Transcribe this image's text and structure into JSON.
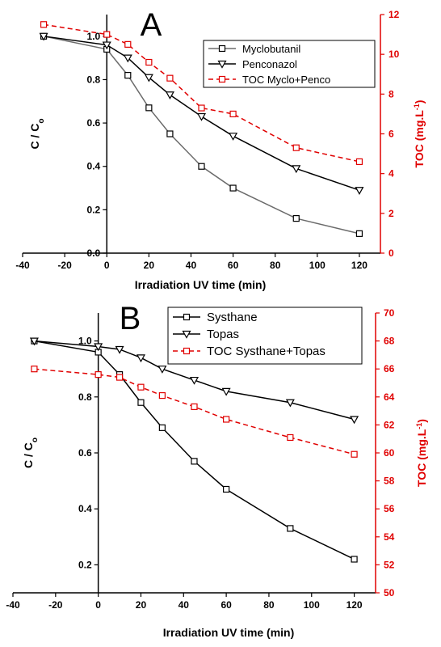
{
  "chart_data": [
    {
      "type": "line",
      "panel": "A",
      "xlabel": "Irradiation UV time (min)",
      "ylabel": "C / Co",
      "y2label": "TOC (mg.L-1)",
      "xlim": [
        -40,
        130
      ],
      "xticks": [
        -40,
        -20,
        0,
        20,
        40,
        60,
        80,
        100,
        120
      ],
      "ylim": [
        0.0,
        1.1
      ],
      "yticks": [
        0.0,
        0.2,
        0.4,
        0.6,
        0.8,
        1.0
      ],
      "ytick_labels": [
        "0.0",
        "0.2",
        "0.4",
        "0.6",
        "0.8",
        "1.0"
      ],
      "y2lim": [
        0,
        12
      ],
      "y2ticks": [
        0,
        2,
        4,
        6,
        8,
        10,
        12
      ],
      "legend_position": "top-right",
      "series": [
        {
          "name": "Myclobutanil",
          "axis": "left",
          "marker": "square",
          "color": "#000000",
          "line_color": "#6b6b6b",
          "dash": false,
          "x": [
            -30,
            0,
            10,
            20,
            30,
            45,
            60,
            90,
            120
          ],
          "y": [
            1.0,
            0.94,
            0.82,
            0.67,
            0.55,
            0.4,
            0.3,
            0.16,
            0.09
          ]
        },
        {
          "name": "Penconazol",
          "axis": "left",
          "marker": "triangle-down",
          "color": "#000000",
          "line_color": "#000000",
          "dash": false,
          "x": [
            -30,
            0,
            10,
            20,
            30,
            45,
            60,
            90,
            120
          ],
          "y": [
            1.0,
            0.96,
            0.9,
            0.81,
            0.73,
            0.63,
            0.54,
            0.39,
            0.29
          ]
        },
        {
          "name": "TOC Myclo+Penco",
          "axis": "right",
          "marker": "square",
          "color": "#e00000",
          "line_color": "#e00000",
          "dash": true,
          "x": [
            -30,
            0,
            10,
            20,
            30,
            45,
            60,
            90,
            120
          ],
          "y": [
            11.5,
            11.0,
            10.5,
            9.6,
            8.8,
            7.3,
            7.0,
            5.3,
            4.6
          ]
        }
      ]
    },
    {
      "type": "line",
      "panel": "B",
      "xlabel": "Irradiation UV time (min)",
      "ylabel": "C / Co",
      "y2label": "TOC (mg.L-1)",
      "xlim": [
        -40,
        130
      ],
      "xticks": [
        -40,
        -20,
        0,
        20,
        40,
        60,
        80,
        100,
        120
      ],
      "ylim": [
        0.1,
        1.1
      ],
      "yticks": [
        0.2,
        0.4,
        0.6,
        0.8,
        1.0
      ],
      "ytick_labels": [
        "0.2",
        "0.4",
        "0.6",
        "0.8",
        "1.0"
      ],
      "y2lim": [
        50,
        70
      ],
      "y2ticks": [
        50,
        52,
        54,
        56,
        58,
        60,
        62,
        64,
        66,
        68,
        70
      ],
      "legend_position": "top-right",
      "series": [
        {
          "name": "Systhane",
          "axis": "left",
          "marker": "square",
          "color": "#000000",
          "line_color": "#000000",
          "dash": false,
          "x": [
            -30,
            0,
            10,
            20,
            30,
            45,
            60,
            90,
            120
          ],
          "y": [
            1.0,
            0.96,
            0.88,
            0.78,
            0.69,
            0.57,
            0.47,
            0.33,
            0.22
          ]
        },
        {
          "name": "Topas",
          "axis": "left",
          "marker": "triangle-down",
          "color": "#000000",
          "line_color": "#000000",
          "dash": false,
          "x": [
            -30,
            0,
            10,
            20,
            30,
            45,
            60,
            90,
            120
          ],
          "y": [
            1.0,
            0.98,
            0.97,
            0.94,
            0.9,
            0.86,
            0.82,
            0.78,
            0.72
          ]
        },
        {
          "name": "TOC Systhane+Topas",
          "axis": "right",
          "marker": "square",
          "color": "#e00000",
          "line_color": "#e00000",
          "dash": true,
          "x": [
            -30,
            0,
            10,
            20,
            30,
            45,
            60,
            90,
            120
          ],
          "y": [
            66.0,
            65.6,
            65.4,
            64.7,
            64.1,
            63.3,
            62.4,
            61.1,
            59.9
          ]
        }
      ]
    }
  ]
}
